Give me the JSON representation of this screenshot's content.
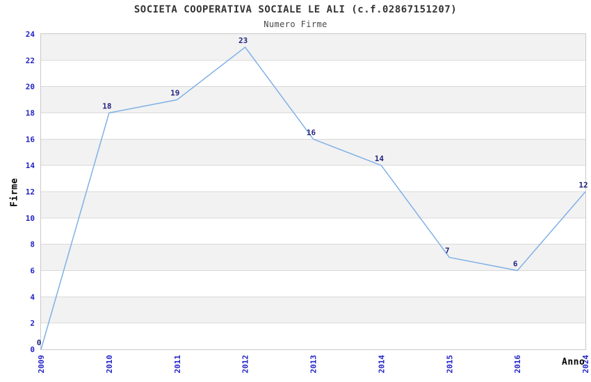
{
  "header": {
    "title": "SOCIETA COOPERATIVA SOCIALE LE ALI (c.f.02867151207)",
    "subtitle": "Numero Firme"
  },
  "chart_data": {
    "type": "line",
    "title": "SOCIETA COOPERATIVA SOCIALE LE ALI (c.f.02867151207)",
    "subtitle": "Numero Firme",
    "xlabel": "Anno",
    "ylabel": "Firme",
    "x": [
      "2009",
      "2010",
      "2011",
      "2012",
      "2013",
      "2014",
      "2015",
      "2016",
      "2024"
    ],
    "values": [
      0,
      18,
      19,
      23,
      16,
      14,
      7,
      6,
      12
    ],
    "point_labels": [
      "0",
      "18",
      "19",
      "23",
      "16",
      "14",
      "7",
      "6",
      "12"
    ],
    "ylim": [
      0,
      24
    ],
    "ytick_step": 2,
    "yticks": [
      0,
      2,
      4,
      6,
      8,
      10,
      12,
      14,
      16,
      18,
      20,
      22,
      24
    ],
    "grid": "horizontal-bands",
    "legend": "none",
    "colors": {
      "line": "#7EB0E6",
      "point_label": "#23237E",
      "tick_label": "#2323C8",
      "band": "#F2F2F2",
      "gridline": "#D9D9D9",
      "plot_border": "#C9C9C9",
      "title": "#333333",
      "axis_label": "#000000",
      "background": "#FFFFFF"
    }
  }
}
